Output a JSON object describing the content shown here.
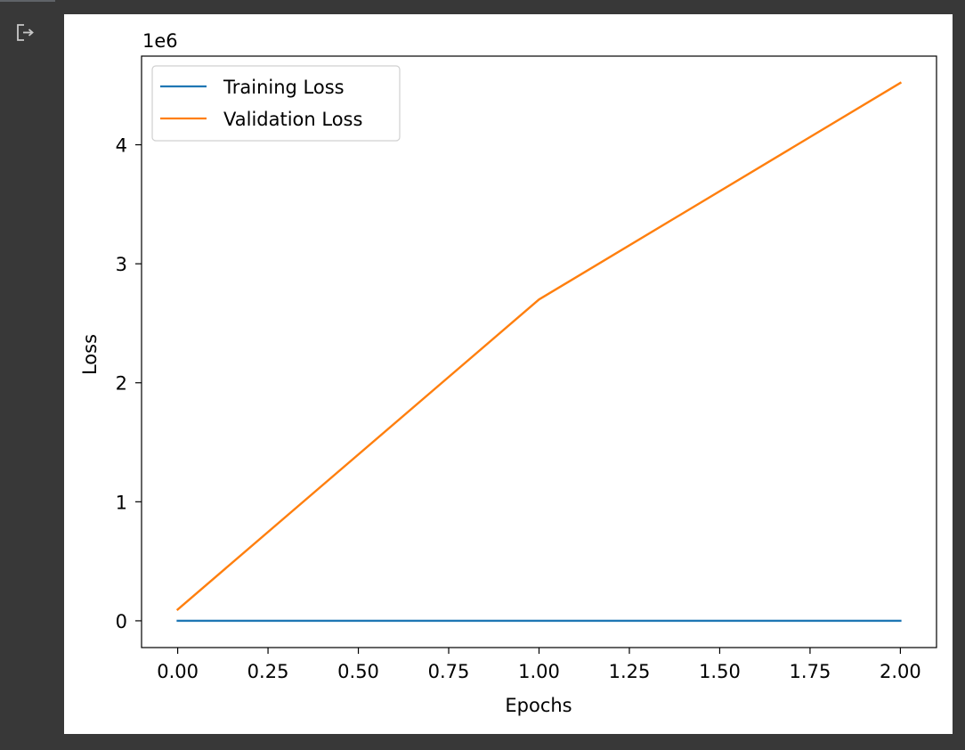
{
  "cell": {
    "output_icon": "output-redirect-icon"
  },
  "chart_data": {
    "type": "line",
    "x": [
      0,
      1,
      2
    ],
    "series": [
      {
        "name": "Training Loss",
        "values": [
          20,
          15,
          12
        ],
        "color": "#1f77b4"
      },
      {
        "name": "Validation Loss",
        "values": [
          95000,
          2700000,
          4520000
        ],
        "color": "#ff7f0e"
      }
    ],
    "xlabel": "Epochs",
    "ylabel": "Loss",
    "offset_text": "1e6",
    "xlim": [
      -0.1,
      2.1
    ],
    "ylim": [
      -225000,
      4745000
    ],
    "xticks": [
      0.0,
      0.25,
      0.5,
      0.75,
      1.0,
      1.25,
      1.5,
      1.75,
      2.0
    ],
    "xtick_labels": [
      "0.00",
      "0.25",
      "0.50",
      "0.75",
      "1.00",
      "1.25",
      "1.50",
      "1.75",
      "2.00"
    ],
    "yticks": [
      0,
      1000000,
      2000000,
      3000000,
      4000000
    ],
    "ytick_labels": [
      "0",
      "1",
      "2",
      "3",
      "4"
    ],
    "legend_position": "upper-left",
    "grid": false
  }
}
